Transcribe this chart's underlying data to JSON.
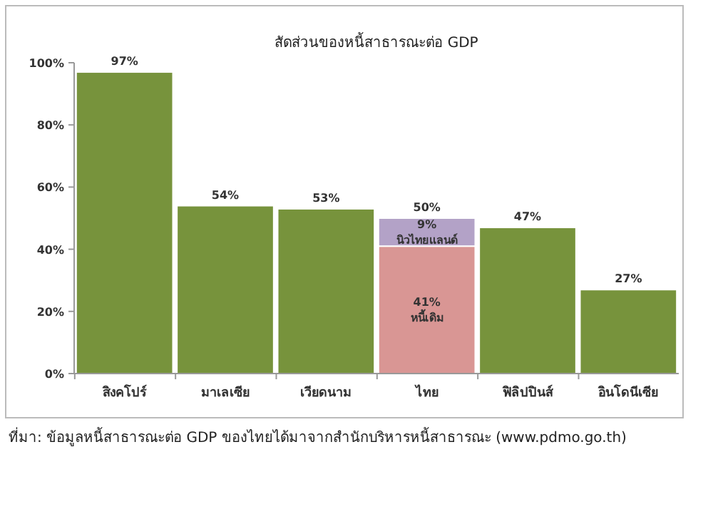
{
  "chart_data": {
    "type": "bar",
    "title": "สัดส่วนของหนี้สาธารณะต่อ GDP",
    "categories": [
      "สิงคโปร์",
      "มาเลเซีย",
      "เวียดนาม",
      "ไทย",
      "ฟิลิปปินส์",
      "อินโดนีเซีย"
    ],
    "stacked": true,
    "series": [
      {
        "color": "#77933c",
        "values": [
          97,
          54,
          53,
          null,
          47,
          27
        ]
      },
      {
        "name": "หนี้เดิม",
        "color": "#d99694",
        "values": [
          null,
          null,
          null,
          41,
          null,
          null
        ],
        "value_labels": [
          null,
          null,
          null,
          "41%",
          null,
          null
        ]
      },
      {
        "name": "นิวไทยแลนด์",
        "color": "#b3a2c7",
        "values": [
          null,
          null,
          null,
          9,
          null,
          null
        ],
        "value_labels": [
          null,
          null,
          null,
          "9%",
          null,
          null
        ]
      }
    ],
    "totals": [
      "97%",
      "54%",
      "53%",
      "50%",
      "47%",
      "27%"
    ],
    "ylim": [
      0,
      100
    ],
    "yticks": [
      {
        "value": 0,
        "label": "0%"
      },
      {
        "value": 20,
        "label": "20%"
      },
      {
        "value": 40,
        "label": "40%"
      },
      {
        "value": 60,
        "label": "60%"
      },
      {
        "value": 80,
        "label": "80%"
      },
      {
        "value": 100,
        "label": "100%"
      }
    ],
    "grid": false,
    "annotations": [
      "ที่มา: ข้อมูลหนี้สาธารณะต่อ GDP ของไทยได้มาจากสำนักบริหารหนี้สาธารณะ (www.pdmo.go.th)"
    ]
  }
}
